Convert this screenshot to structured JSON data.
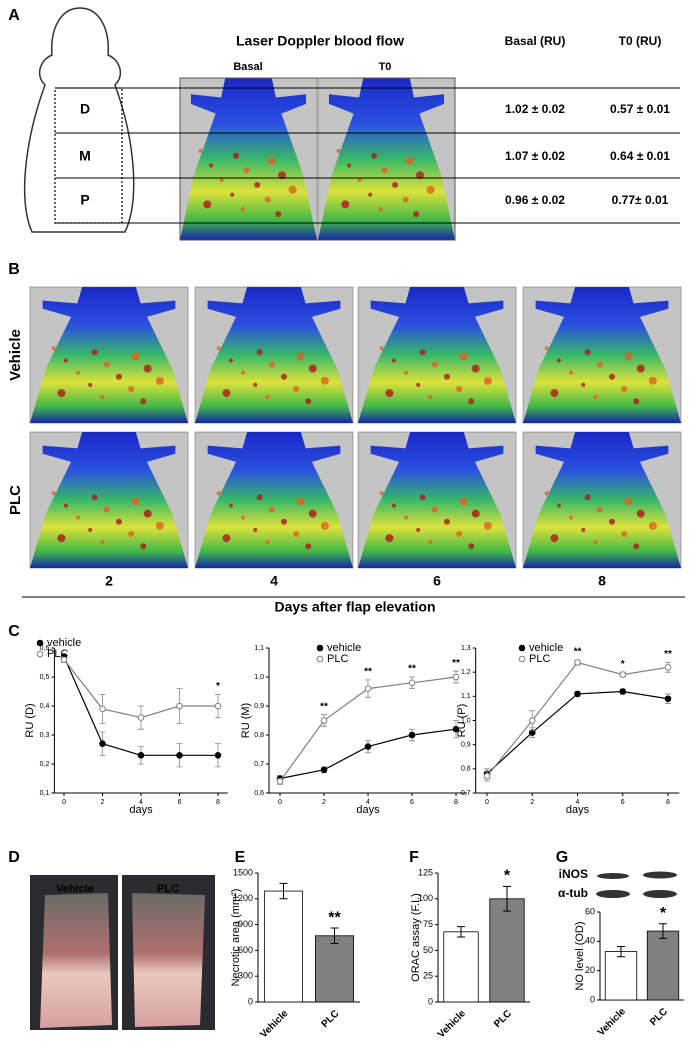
{
  "panel_labels": [
    "A",
    "B",
    "C",
    "D",
    "E",
    "F",
    "G"
  ],
  "panel_a": {
    "title": "Laser Doppler blood flow",
    "image_labels": [
      "Basal",
      "T0"
    ],
    "columns": [
      "Basal (RU)",
      "T0 (RU)"
    ],
    "regions": [
      "D",
      "M",
      "P"
    ],
    "rows": [
      [
        "1.02 ± 0.02",
        "0.57 ± 0.01"
      ],
      [
        "1.07 ± 0.02",
        "0.64 ± 0.01"
      ],
      [
        "0.96 ± 0.02",
        "0.77± 0.01"
      ]
    ]
  },
  "panel_b": {
    "groups": [
      "Vehicle",
      "PLC"
    ],
    "days": [
      "2",
      "4",
      "6",
      "8"
    ],
    "xlabel": "Days after flap elevation"
  },
  "panel_d": {
    "labels": [
      "Vehicle",
      "PLC"
    ]
  },
  "panel_g_blot": {
    "labels": [
      "iNOS",
      "α-tub"
    ]
  },
  "chart_data": [
    {
      "type": "line",
      "ylabel": "RU (D)",
      "xlabel": "days",
      "x": [
        0,
        2,
        4,
        6,
        8
      ],
      "xlim": [
        -0.5,
        8.5
      ],
      "xticks": [
        0,
        2,
        4,
        6,
        8
      ],
      "ylim": [
        0.1,
        0.6
      ],
      "yticks": [
        {
          "value": 0.1,
          "label": "0,1"
        },
        {
          "value": 0.2,
          "label": "0,2"
        },
        {
          "value": 0.3,
          "label": "0,3"
        },
        {
          "value": 0.4,
          "label": "0,4"
        },
        {
          "value": 0.5,
          "label": "0,5"
        },
        {
          "value": 0.6,
          "label": "0,6"
        }
      ],
      "legend": "upper left",
      "series": [
        {
          "name": "vehicle",
          "color": "#000000",
          "marker_fill": "#000000",
          "values": [
            0.57,
            0.27,
            0.23,
            0.23,
            0.23
          ],
          "errors": [
            0.01,
            0.04,
            0.03,
            0.04,
            0.04
          ]
        },
        {
          "name": "PLC",
          "color": "#808080",
          "marker_fill": "#ffffff",
          "values": [
            0.56,
            0.39,
            0.36,
            0.4,
            0.4
          ],
          "errors": [
            0.01,
            0.05,
            0.04,
            0.06,
            0.04
          ]
        }
      ],
      "annotations": [
        null,
        null,
        null,
        null,
        "*"
      ]
    },
    {
      "type": "line",
      "ylabel": "RU (M)",
      "xlabel": "days",
      "x": [
        0,
        2,
        4,
        6,
        8
      ],
      "xlim": [
        -0.5,
        8.5
      ],
      "xticks": [
        0,
        2,
        4,
        6,
        8
      ],
      "ylim": [
        0.6,
        1.1
      ],
      "yticks": [
        {
          "value": 0.6,
          "label": "0,6"
        },
        {
          "value": 0.7,
          "label": "0,7"
        },
        {
          "value": 0.8,
          "label": "0,8"
        },
        {
          "value": 0.9,
          "label": "0,9"
        },
        {
          "value": 1.0,
          "label": "1,0"
        },
        {
          "value": 1.1,
          "label": "1,1"
        }
      ],
      "legend": "upper center",
      "series": [
        {
          "name": "vehicle",
          "color": "#000000",
          "marker_fill": "#000000",
          "values": [
            0.65,
            0.68,
            0.76,
            0.8,
            0.82
          ],
          "errors": [
            0.01,
            0.01,
            0.02,
            0.02,
            0.03
          ]
        },
        {
          "name": "PLC",
          "color": "#808080",
          "marker_fill": "#ffffff",
          "values": [
            0.64,
            0.85,
            0.96,
            0.98,
            1.0
          ],
          "errors": [
            0.01,
            0.02,
            0.03,
            0.02,
            0.02
          ]
        }
      ],
      "annotations": [
        null,
        "**",
        "**",
        "**",
        "**"
      ]
    },
    {
      "type": "line",
      "ylabel": "RU (P)",
      "xlabel": "days",
      "x": [
        0,
        2,
        4,
        6,
        8
      ],
      "xlim": [
        -0.5,
        8.5
      ],
      "xticks": [
        0,
        2,
        4,
        6,
        8
      ],
      "ylim": [
        0.7,
        1.3
      ],
      "yticks": [
        {
          "value": 0.7,
          "label": "0,7"
        },
        {
          "value": 0.8,
          "label": "0,8"
        },
        {
          "value": 0.9,
          "label": "0,9"
        },
        {
          "value": 1.0,
          "label": "1,0"
        },
        {
          "value": 1.1,
          "label": "1,1"
        },
        {
          "value": 1.2,
          "label": "1,2"
        },
        {
          "value": 1.3,
          "label": "1,3"
        }
      ],
      "legend": "upper center",
      "series": [
        {
          "name": "vehicle",
          "color": "#000000",
          "marker_fill": "#000000",
          "values": [
            0.78,
            0.95,
            1.11,
            1.12,
            1.09
          ],
          "errors": [
            0.02,
            0.02,
            0.01,
            0.01,
            0.02
          ]
        },
        {
          "name": "PLC",
          "color": "#808080",
          "marker_fill": "#ffffff",
          "values": [
            0.77,
            1.0,
            1.24,
            1.19,
            1.22
          ],
          "errors": [
            0.02,
            0.04,
            0.01,
            0.01,
            0.02
          ]
        }
      ],
      "annotations": [
        null,
        null,
        "**",
        "*",
        "**"
      ]
    },
    {
      "type": "bar",
      "ylabel": "Necrotic area (mm²)",
      "categories": [
        "Vehicle",
        "PLC"
      ],
      "values": [
        1290,
        770
      ],
      "errors": [
        90,
        90
      ],
      "colors": [
        "#ffffff",
        "#808080"
      ],
      "ylim": [
        0,
        1500
      ],
      "yticks": [
        0,
        300,
        600,
        900,
        1200,
        1500
      ],
      "value_annotations": [
        null,
        "**"
      ]
    },
    {
      "type": "bar",
      "ylabel": "ORAC assay (F.I.)",
      "categories": [
        "Vehicle",
        "PLC"
      ],
      "values": [
        68,
        100
      ],
      "errors": [
        5,
        12
      ],
      "colors": [
        "#ffffff",
        "#808080"
      ],
      "ylim": [
        0,
        125
      ],
      "yticks": [
        0,
        25,
        50,
        75,
        100,
        125
      ],
      "value_annotations": [
        null,
        "*"
      ]
    },
    {
      "type": "bar",
      "ylabel": "NO level (OD)",
      "categories": [
        "Vehicle",
        "PLC"
      ],
      "values": [
        33,
        47
      ],
      "errors": [
        3.5,
        5
      ],
      "colors": [
        "#ffffff",
        "#808080"
      ],
      "ylim": [
        0,
        60
      ],
      "yticks": [
        0,
        20,
        40,
        60
      ],
      "value_annotations": [
        null,
        "*"
      ]
    }
  ]
}
